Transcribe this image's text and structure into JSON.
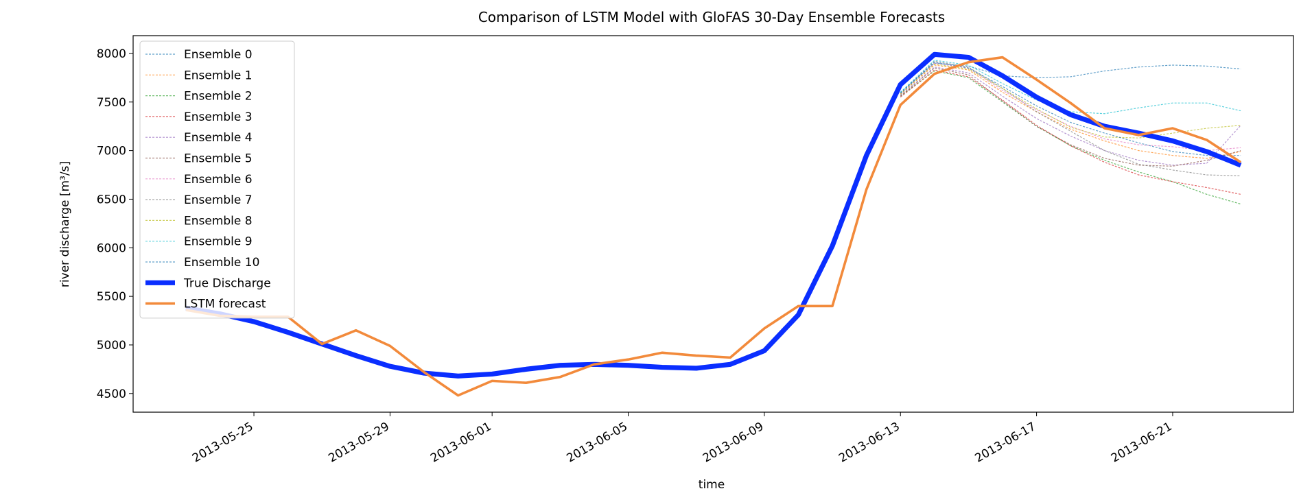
{
  "chart_data": {
    "type": "line",
    "title": "Comparison of LSTM Model with GloFAS 30-Day Ensemble Forecasts",
    "x_label": "time",
    "y_label": "river discharge [m³/s]",
    "x": [
      "2013-05-23",
      "2013-05-24",
      "2013-05-25",
      "2013-05-26",
      "2013-05-27",
      "2013-05-28",
      "2013-05-29",
      "2013-05-30",
      "2013-05-31",
      "2013-06-01",
      "2013-06-02",
      "2013-06-03",
      "2013-06-04",
      "2013-06-05",
      "2013-06-06",
      "2013-06-07",
      "2013-06-08",
      "2013-06-09",
      "2013-06-10",
      "2013-06-11",
      "2013-06-12",
      "2013-06-13",
      "2013-06-14",
      "2013-06-15",
      "2013-06-16",
      "2013-06-17",
      "2013-06-18",
      "2013-06-19",
      "2013-06-20",
      "2013-06-21",
      "2013-06-22",
      "2013-06-23"
    ],
    "xlim": [
      "2013-05-21T10:48",
      "2013-06-24T13:12"
    ],
    "xticks": [
      "2013-05-25",
      "2013-05-29",
      "2013-06-01",
      "2013-06-05",
      "2013-06-09",
      "2013-06-13",
      "2013-06-17",
      "2013-06-21"
    ],
    "ylim": [
      4308,
      8183
    ],
    "yticks": [
      4500,
      5000,
      5500,
      6000,
      6500,
      7000,
      7500,
      8000
    ],
    "grid": false,
    "legend": "upper left",
    "series": [
      {
        "name": "Ensemble 0",
        "color": "#1f77b4",
        "linestyle": "dashed",
        "linewidth": 1,
        "values": [
          null,
          null,
          null,
          null,
          null,
          null,
          null,
          null,
          null,
          null,
          null,
          null,
          null,
          null,
          null,
          null,
          null,
          null,
          null,
          null,
          null,
          7600,
          7900,
          7870,
          7770,
          7750,
          7760,
          7820,
          7860,
          7880,
          7870,
          7840
        ]
      },
      {
        "name": "Ensemble 1",
        "color": "#ff7f0e",
        "linestyle": "dashed",
        "linewidth": 1,
        "values": [
          null,
          null,
          null,
          null,
          null,
          null,
          null,
          null,
          null,
          null,
          null,
          null,
          null,
          null,
          null,
          null,
          null,
          null,
          null,
          null,
          null,
          7580,
          7880,
          7830,
          7600,
          7400,
          7220,
          7100,
          7000,
          6950,
          6920,
          6990
        ]
      },
      {
        "name": "Ensemble 2",
        "color": "#2ca02c",
        "linestyle": "dashed",
        "linewidth": 1,
        "values": [
          null,
          null,
          null,
          null,
          null,
          null,
          null,
          null,
          null,
          null,
          null,
          null,
          null,
          null,
          null,
          null,
          null,
          null,
          null,
          null,
          null,
          7560,
          7820,
          7750,
          7500,
          7250,
          7050,
          6900,
          6780,
          6680,
          6550,
          6450
        ]
      },
      {
        "name": "Ensemble 3",
        "color": "#d62728",
        "linestyle": "dashed",
        "linewidth": 1,
        "values": [
          null,
          null,
          null,
          null,
          null,
          null,
          null,
          null,
          null,
          null,
          null,
          null,
          null,
          null,
          null,
          null,
          null,
          null,
          null,
          null,
          null,
          7550,
          7830,
          7760,
          7520,
          7260,
          7050,
          6880,
          6750,
          6680,
          6620,
          6550
        ]
      },
      {
        "name": "Ensemble 4",
        "color": "#9467bd",
        "linestyle": "dashed",
        "linewidth": 1,
        "values": [
          null,
          null,
          null,
          null,
          null,
          null,
          null,
          null,
          null,
          null,
          null,
          null,
          null,
          null,
          null,
          null,
          null,
          null,
          null,
          null,
          null,
          7570,
          7860,
          7800,
          7560,
          7330,
          7150,
          7000,
          6900,
          6850,
          6870,
          7260
        ]
      },
      {
        "name": "Ensemble 5",
        "color": "#8c564b",
        "linestyle": "dashed",
        "linewidth": 1,
        "values": [
          null,
          null,
          null,
          null,
          null,
          null,
          null,
          null,
          null,
          null,
          null,
          null,
          null,
          null,
          null,
          null,
          null,
          null,
          null,
          null,
          null,
          7560,
          7850,
          7780,
          7510,
          7250,
          7060,
          6920,
          6850,
          6840,
          6900,
          7000
        ]
      },
      {
        "name": "Ensemble 6",
        "color": "#e377c2",
        "linestyle": "dashed",
        "linewidth": 1,
        "values": [
          null,
          null,
          null,
          null,
          null,
          null,
          null,
          null,
          null,
          null,
          null,
          null,
          null,
          null,
          null,
          null,
          null,
          null,
          null,
          null,
          null,
          7580,
          7900,
          7850,
          7620,
          7420,
          7250,
          7120,
          7060,
          7040,
          7000,
          7030
        ]
      },
      {
        "name": "Ensemble 7",
        "color": "#7f7f7f",
        "linestyle": "dashed",
        "linewidth": 1,
        "values": [
          null,
          null,
          null,
          null,
          null,
          null,
          null,
          null,
          null,
          null,
          null,
          null,
          null,
          null,
          null,
          null,
          null,
          null,
          null,
          null,
          null,
          7590,
          7920,
          7860,
          7640,
          7400,
          7200,
          7000,
          6860,
          6800,
          6750,
          6740
        ]
      },
      {
        "name": "Ensemble 8",
        "color": "#bcbd22",
        "linestyle": "dashed",
        "linewidth": 1,
        "values": [
          null,
          null,
          null,
          null,
          null,
          null,
          null,
          null,
          null,
          null,
          null,
          null,
          null,
          null,
          null,
          null,
          null,
          null,
          null,
          null,
          null,
          7580,
          7890,
          7840,
          7640,
          7430,
          7240,
          7140,
          7130,
          7180,
          7230,
          7260
        ]
      },
      {
        "name": "Ensemble 9",
        "color": "#17becf",
        "linestyle": "dashed",
        "linewidth": 1,
        "values": [
          null,
          null,
          null,
          null,
          null,
          null,
          null,
          null,
          null,
          null,
          null,
          null,
          null,
          null,
          null,
          null,
          null,
          null,
          null,
          null,
          null,
          7600,
          7930,
          7880,
          7690,
          7520,
          7400,
          7380,
          7440,
          7490,
          7490,
          7410
        ]
      },
      {
        "name": "Ensemble 10",
        "color": "#1f77b4",
        "linestyle": "dashed",
        "linewidth": 1,
        "values": [
          null,
          null,
          null,
          null,
          null,
          null,
          null,
          null,
          null,
          null,
          null,
          null,
          null,
          null,
          null,
          null,
          null,
          null,
          null,
          null,
          null,
          7590,
          7910,
          7850,
          7660,
          7460,
          7290,
          7180,
          7080,
          6990,
          6950,
          6950
        ]
      },
      {
        "name": "True Discharge",
        "color": "#0a2eff",
        "linestyle": "solid",
        "linewidth": 6,
        "values": [
          5380,
          5320,
          5240,
          5130,
          5010,
          4890,
          4780,
          4710,
          4680,
          4700,
          4750,
          4790,
          4800,
          4790,
          4770,
          4760,
          4800,
          4940,
          5310,
          6020,
          6950,
          7680,
          7990,
          7960,
          7770,
          7550,
          7370,
          7250,
          7180,
          7100,
          6990,
          6850
        ]
      },
      {
        "name": "LSTM forecast",
        "color": "#f28a3b",
        "linestyle": "solid",
        "linewidth": 3,
        "values": [
          5360,
          5300,
          5290,
          5290,
          5010,
          5150,
          4990,
          4720,
          4480,
          4630,
          4610,
          4670,
          4800,
          4850,
          4920,
          4890,
          4870,
          5170,
          5400,
          5400,
          6600,
          7470,
          7790,
          7910,
          7960,
          7730,
          7490,
          7230,
          7160,
          7230,
          7110,
          6880
        ]
      }
    ]
  }
}
